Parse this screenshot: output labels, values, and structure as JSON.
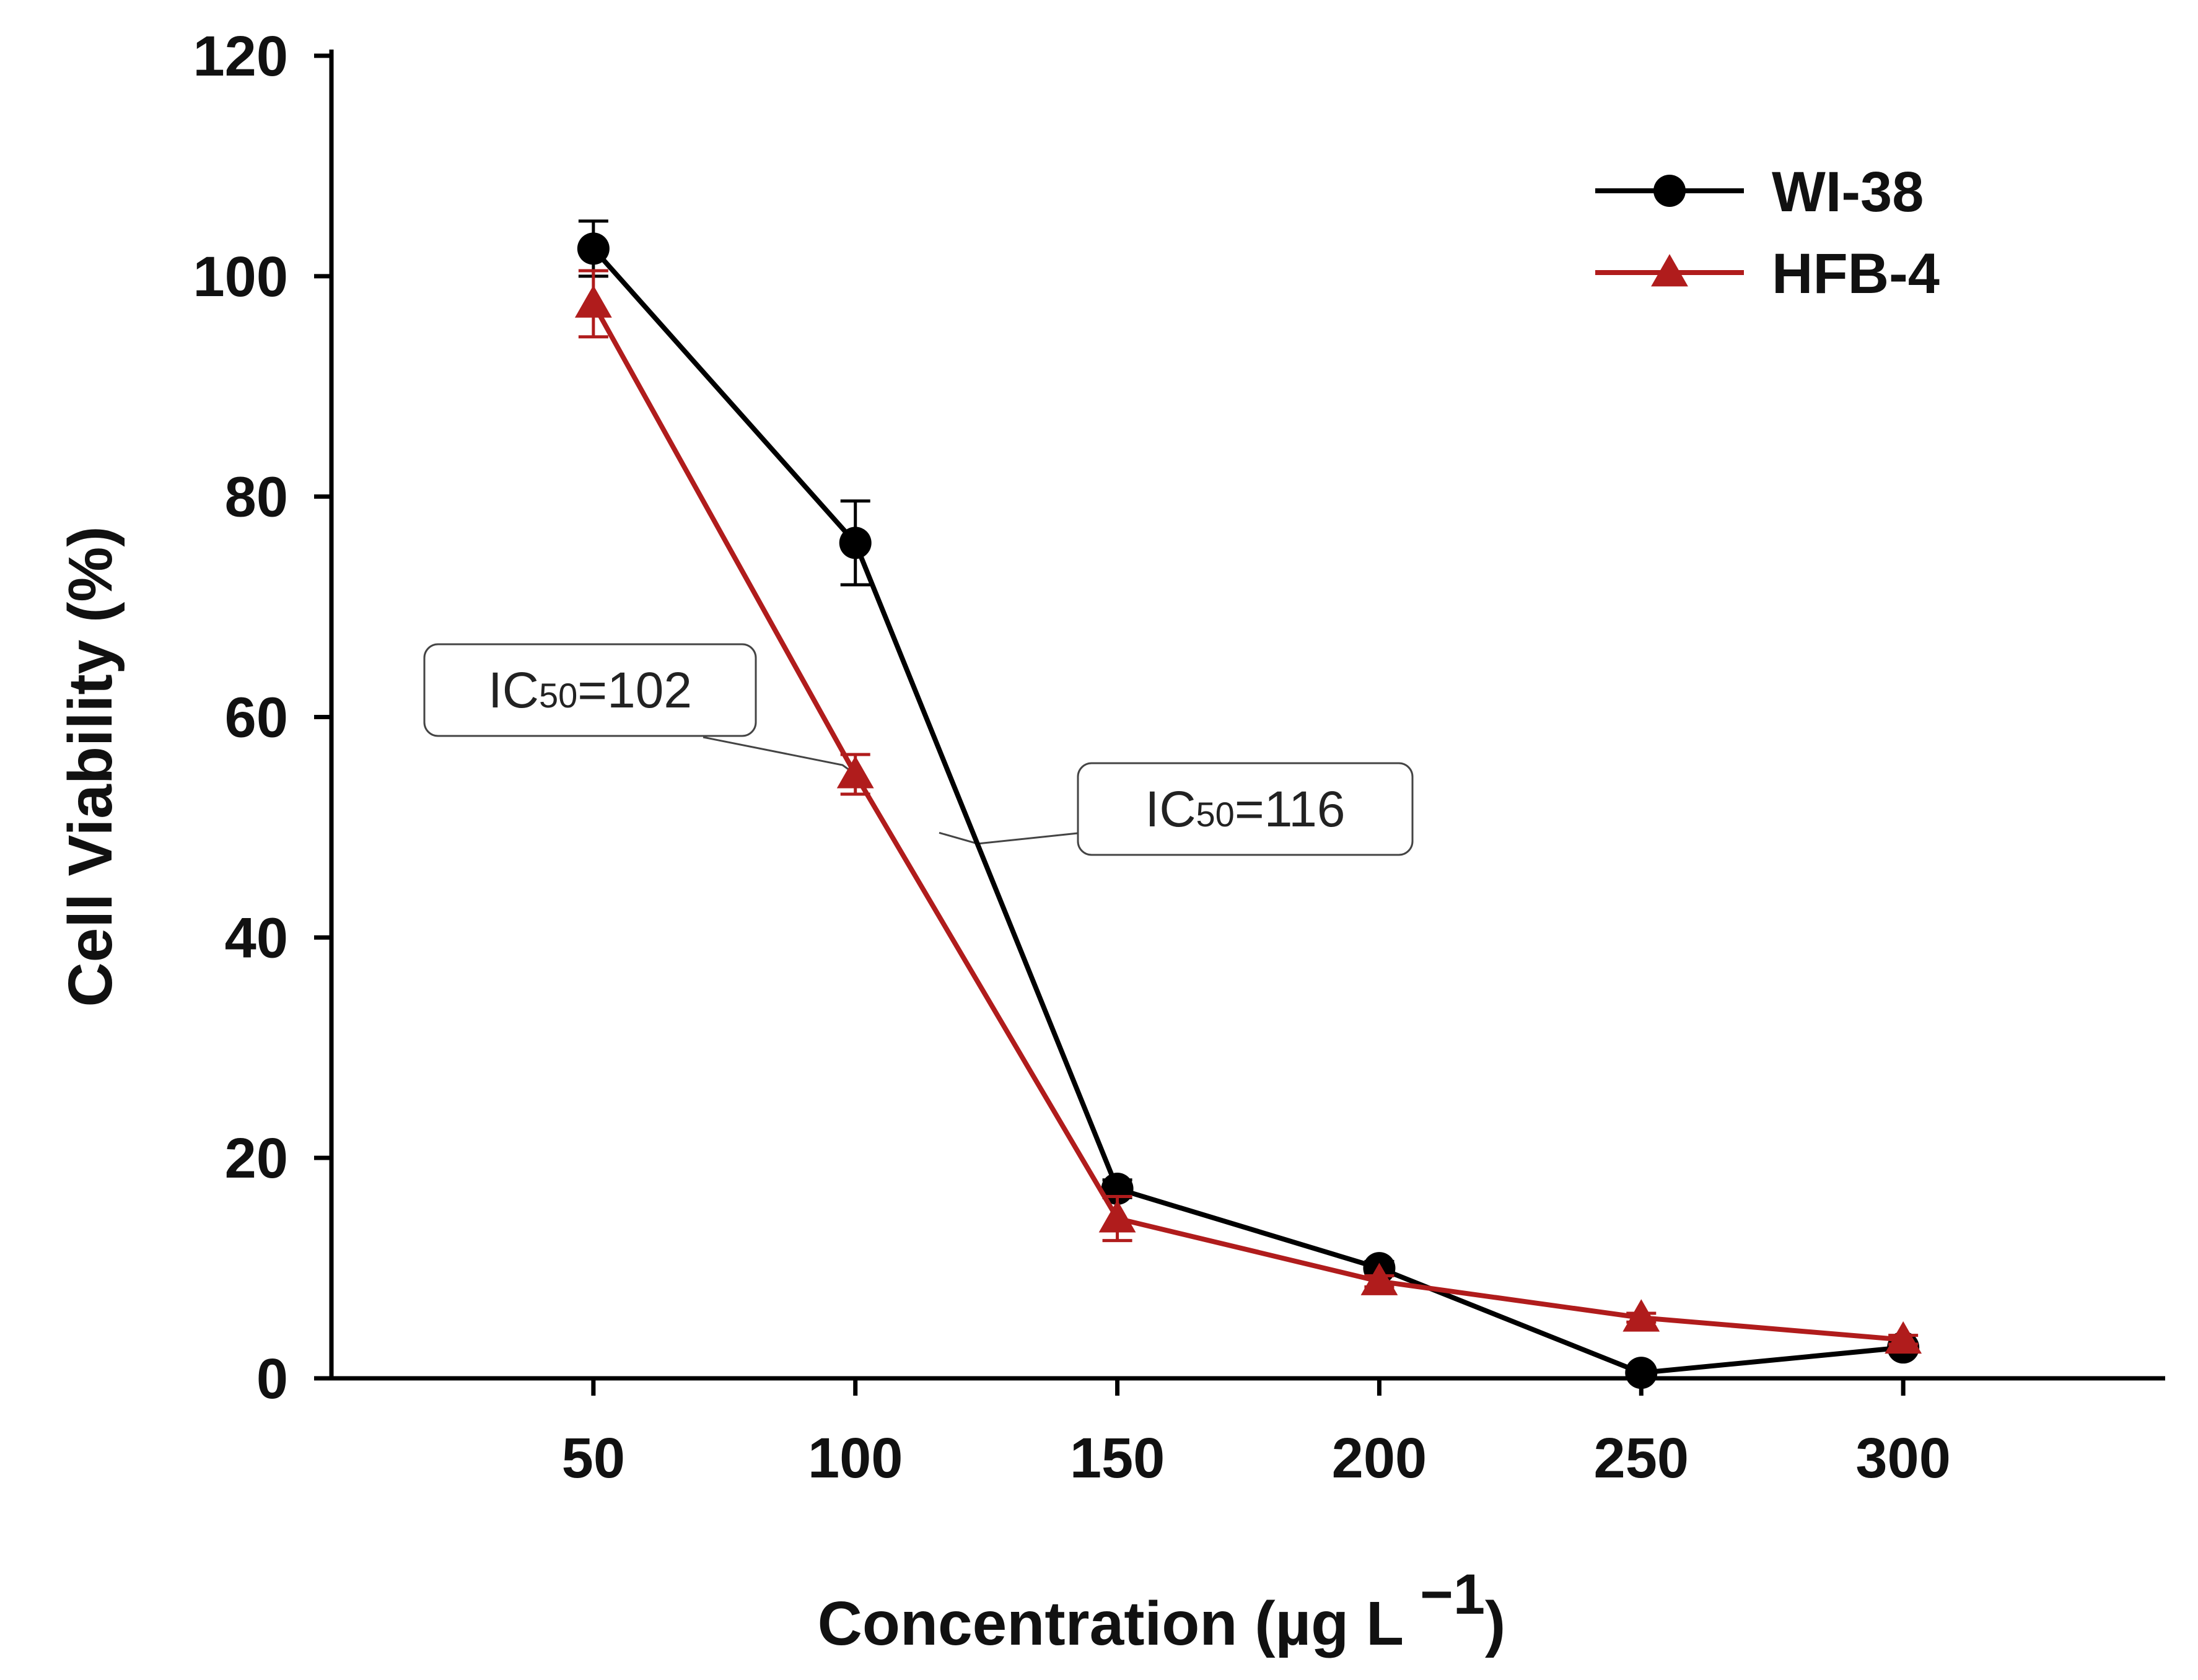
{
  "chart_data": {
    "type": "line",
    "title": "",
    "xlabel": "Concentration (µg L",
    "xlabel_superscript": "−1",
    "xlabel_close": ")",
    "ylabel": "Cell Viability (%)",
    "x": [
      50,
      100,
      150,
      200,
      250,
      300
    ],
    "x_tick_labels": [
      "50",
      "100",
      "150",
      "200",
      "250",
      "300"
    ],
    "xlim": [
      0,
      350
    ],
    "ylim": [
      0,
      120
    ],
    "y_ticks": [
      0,
      20,
      40,
      60,
      80,
      100,
      120
    ],
    "y_tick_labels": [
      "0",
      "20",
      "40",
      "60",
      "80",
      "100",
      "120"
    ],
    "grid": false,
    "legend_position": "top-right",
    "series": [
      {
        "name": "WI-38",
        "color": "#000000",
        "marker": "circle",
        "values": [
          102.5,
          75.8,
          17.2,
          10.0,
          0.5,
          2.8
        ],
        "errors": [
          2.5,
          3.8,
          0.8,
          0.6,
          0.3,
          0.3
        ]
      },
      {
        "name": "HFB-4",
        "color": "#b01c1c",
        "marker": "triangle",
        "values": [
          97.5,
          54.8,
          14.5,
          8.8,
          5.5,
          3.5
        ],
        "errors": [
          3.0,
          1.8,
          2.0,
          0.5,
          0.4,
          0.4
        ]
      }
    ],
    "annotations": [
      {
        "prefix": "IC",
        "sub": "50",
        "suffix": "=102",
        "target_x": 100,
        "target_y": 54.8
      },
      {
        "prefix": "IC",
        "sub": "50",
        "suffix": "=116",
        "target_x": 116,
        "target_y": 49.5
      }
    ]
  }
}
